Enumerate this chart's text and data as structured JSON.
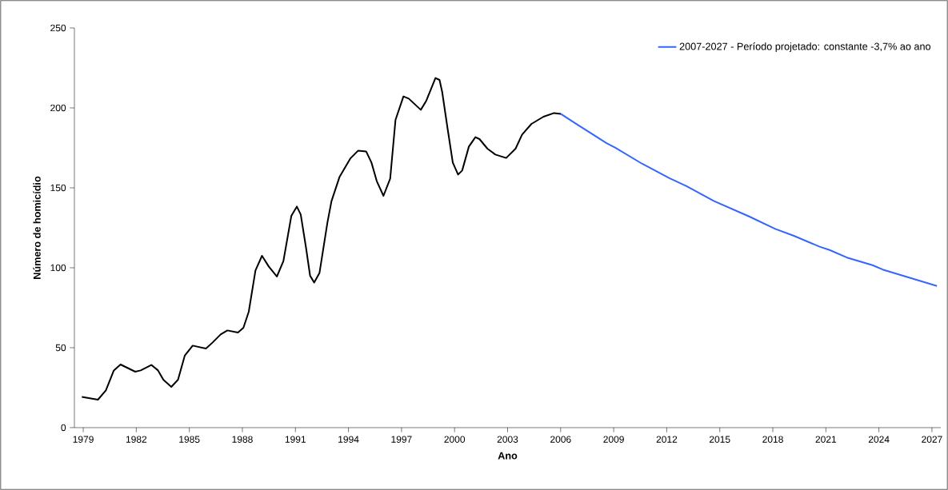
{
  "chart_data": {
    "type": "line",
    "xlabel": "Ano",
    "ylabel": "Número de homicídio",
    "xlim": [
      1978.5,
      2027.5
    ],
    "ylim": [
      0,
      250
    ],
    "xticks": [
      1979,
      1982,
      1985,
      1988,
      1991,
      1994,
      1997,
      2000,
      2003,
      2006,
      2009,
      2012,
      2015,
      2018,
      2021,
      2024,
      2027
    ],
    "yticks": [
      0,
      50,
      100,
      150,
      200,
      250
    ],
    "grid": false,
    "legend": "top right",
    "line_style": "solid",
    "marker": "none",
    "series": [
      {
        "color": "#000000",
        "x": [
          1978.92,
          1979.83,
          1980.28,
          1980.73,
          1981.11,
          1981.94,
          1982.25,
          1982.85,
          1983.23,
          1983.53,
          1983.98,
          1984.36,
          1984.74,
          1985.19,
          1985.94,
          1986.32,
          1986.77,
          1987.15,
          1987.75,
          1988.06,
          1988.36,
          1988.74,
          1989.11,
          1989.49,
          1989.95,
          1990.32,
          1990.77,
          1991.08,
          1991.3,
          1991.6,
          1991.83,
          1992.06,
          1992.36,
          1992.81,
          1993.04,
          1993.49,
          1994.1,
          1994.55,
          1995.0,
          1995.3,
          1995.6,
          1995.98,
          1996.36,
          1996.66,
          1997.11,
          1997.41,
          1998.09,
          1998.39,
          1998.92,
          1999.15,
          1999.3,
          1999.6,
          1999.9,
          2000.2,
          2000.43,
          2000.81,
          2001.18,
          2001.41,
          2001.86,
          2002.31,
          2002.92,
          2003.45,
          2003.82,
          2004.35,
          2005.03,
          2005.63,
          2006.01
        ],
        "values": [
          19.2,
          17.5,
          23.3,
          35.8,
          39.5,
          35,
          35.8,
          39.2,
          35.8,
          30,
          25.5,
          30,
          45,
          51.3,
          49.5,
          53.3,
          58.3,
          60.8,
          59.5,
          62.5,
          72.5,
          98.3,
          107.5,
          100.8,
          94.5,
          104.2,
          132.5,
          138.3,
          133.3,
          112.5,
          95,
          90.8,
          96.7,
          128.3,
          141.7,
          156.7,
          168.3,
          173.3,
          172.8,
          165.8,
          154.2,
          145,
          155.8,
          192.5,
          207.2,
          205.8,
          198.8,
          204.2,
          218.7,
          217.5,
          210,
          187.5,
          165.8,
          158.3,
          160.8,
          175.8,
          181.7,
          180.5,
          174.5,
          170.8,
          168.7,
          174.5,
          183.3,
          190,
          194.5,
          196.8,
          196.3
        ]
      },
      {
        "name": "2007-2027 - Período projetado: constante -3,7% ao ano",
        "color": "#3366ff",
        "x": [
          2006.01,
          2006.09,
          2006.82,
          2008.6,
          2009.08,
          2010.62,
          2012.15,
          2013.12,
          2014.66,
          2016.68,
          2018.14,
          2019.19,
          2020.65,
          2021.21,
          2022.19,
          2023.64,
          2024.21,
          2025.26,
          2027.28
        ],
        "values": [
          196.3,
          195.7,
          190.4,
          177.9,
          175.2,
          165,
          156.1,
          151.1,
          141.8,
          132,
          124.3,
          120,
          113.2,
          111.1,
          106.4,
          101.6,
          98.9,
          95.4,
          88.6
        ]
      }
    ]
  }
}
